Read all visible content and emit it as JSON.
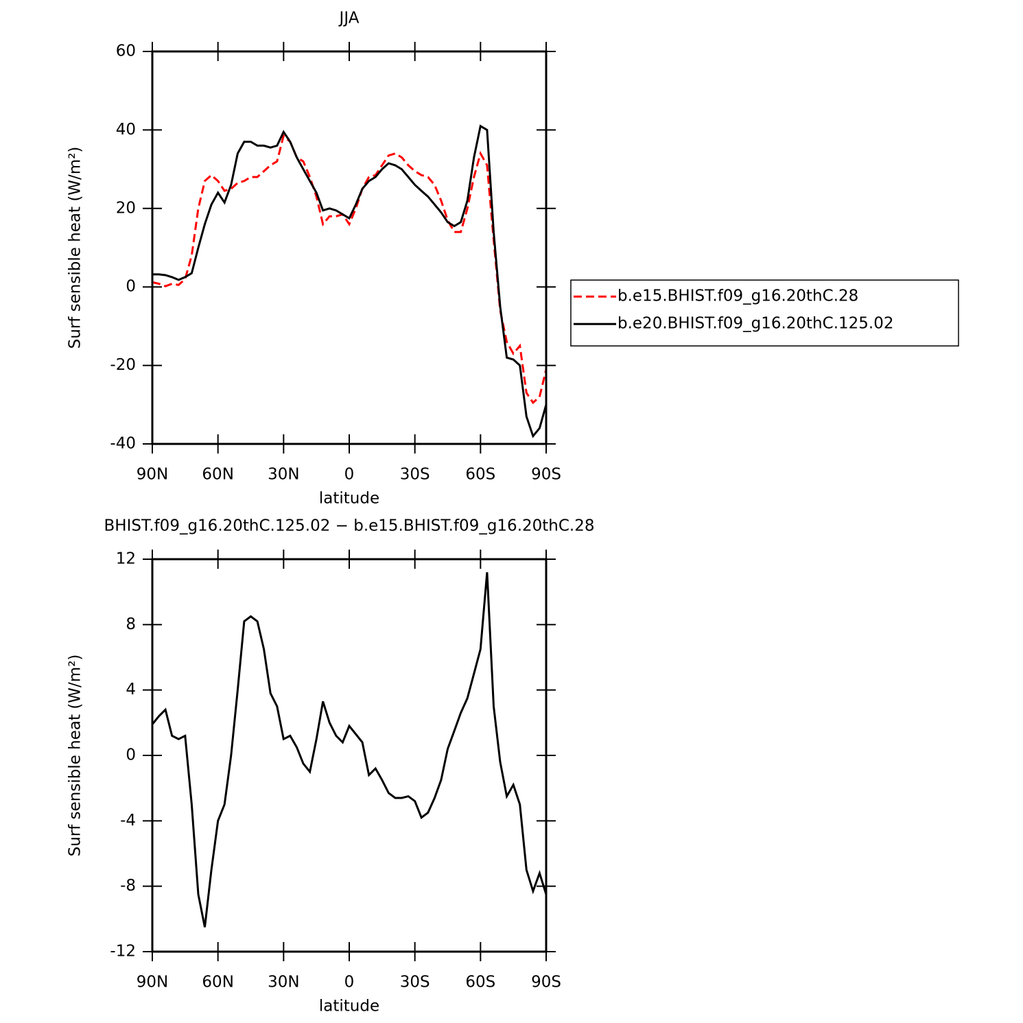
{
  "chart_data": [
    {
      "type": "line",
      "title": "JJA",
      "xlabel": "latitude",
      "ylabel": "Surf sensible heat (W/m²)",
      "x": [
        90,
        87,
        84,
        81,
        78,
        75,
        72,
        69,
        66,
        63,
        60,
        57,
        54,
        51,
        48,
        45,
        42,
        39,
        36,
        33,
        30,
        27,
        24,
        21,
        18,
        15,
        12,
        9,
        6,
        3,
        0,
        -3,
        -6,
        -9,
        -12,
        -15,
        -18,
        -21,
        -24,
        -27,
        -30,
        -33,
        -36,
        -39,
        -42,
        -45,
        -48,
        -51,
        -54,
        -57,
        -60,
        -63,
        -66,
        -69,
        -72,
        -75,
        -78,
        -81,
        -84,
        -87,
        -90
      ],
      "xlim": [
        90,
        -90
      ],
      "xticks": [
        {
          "value": 90,
          "label": "90N"
        },
        {
          "value": 60,
          "label": "60N"
        },
        {
          "value": 30,
          "label": "30N"
        },
        0,
        {
          "value": -30,
          "label": "30S"
        },
        {
          "value": -60,
          "label": "60S"
        },
        {
          "value": -90,
          "label": "90S"
        }
      ],
      "ylim": [
        -40,
        60
      ],
      "yticks": [
        -40,
        -20,
        0,
        20,
        40,
        60
      ],
      "legend": "right",
      "series": [
        {
          "name": "b.e15.BHIST.f09_g16.20thC.28",
          "color": "#ff0000",
          "dash": true,
          "values": [
            1.2,
            0.8,
            0.2,
            0.8,
            0.5,
            2,
            8,
            20,
            27,
            28.5,
            27,
            24.5,
            25,
            26.5,
            27,
            28,
            28,
            29.5,
            31,
            32,
            38.5,
            37,
            33,
            32,
            28,
            23,
            16,
            18,
            18,
            18.5,
            16,
            20,
            25,
            28,
            28.5,
            31,
            33.5,
            34,
            33,
            31,
            29.5,
            28.5,
            28,
            26,
            22,
            17,
            14,
            14,
            20,
            28,
            34,
            31,
            12,
            -6,
            -14,
            -17,
            -15,
            -27,
            -29.5,
            -28,
            -21
          ]
        },
        {
          "name": "b.e20.BHIST.f09_g16.20thC.125.02",
          "color": "#000000",
          "dash": false,
          "values": [
            3.2,
            3.2,
            3,
            2.5,
            1.8,
            2.5,
            3.5,
            10,
            16,
            21,
            24,
            21.5,
            26,
            34,
            37,
            37,
            36,
            36,
            35.5,
            36,
            39.5,
            37,
            33,
            30,
            27,
            24,
            19.5,
            20,
            19.5,
            18.5,
            17.5,
            21,
            25,
            27,
            28,
            30,
            31.5,
            31,
            30,
            28,
            26,
            24.5,
            23,
            21,
            19,
            16.5,
            15.5,
            16.5,
            22,
            33,
            41,
            40,
            14,
            -5,
            -18,
            -18.5,
            -20,
            -33,
            -38,
            -36,
            -30
          ]
        }
      ]
    },
    {
      "type": "line",
      "title": "BHIST.f09_g16.20thC.125.02 − b.e15.BHIST.f09_g16.20thC.28",
      "xlabel": "latitude",
      "ylabel": "Surf sensible heat (W/m²)",
      "x": [
        90,
        87,
        84,
        81,
        78,
        75,
        72,
        69,
        66,
        63,
        60,
        57,
        54,
        51,
        48,
        45,
        42,
        39,
        36,
        33,
        30,
        27,
        24,
        21,
        18,
        15,
        12,
        9,
        6,
        3,
        0,
        -3,
        -6,
        -9,
        -12,
        -15,
        -18,
        -21,
        -24,
        -27,
        -30,
        -33,
        -36,
        -39,
        -42,
        -45,
        -48,
        -51,
        -54,
        -57,
        -60,
        -63,
        -66,
        -69,
        -72,
        -75,
        -78,
        -81,
        -84,
        -87,
        -90
      ],
      "xlim": [
        90,
        -90
      ],
      "xticks": [
        {
          "value": 90,
          "label": "90N"
        },
        {
          "value": 60,
          "label": "60N"
        },
        {
          "value": 30,
          "label": "30N"
        },
        0,
        {
          "value": -30,
          "label": "30S"
        },
        {
          "value": -60,
          "label": "60S"
        },
        {
          "value": -90,
          "label": "90S"
        }
      ],
      "ylim": [
        -12,
        12
      ],
      "yticks": [
        -12,
        -8,
        -4,
        0,
        4,
        8,
        12
      ],
      "series": [
        {
          "color": "#000000",
          "dash": false,
          "values": [
            1.9,
            2.4,
            2.8,
            1.2,
            1.0,
            1.2,
            -3,
            -8.5,
            -10.5,
            -7,
            -4,
            -3,
            0,
            4,
            8.2,
            8.5,
            8.2,
            6.5,
            3.8,
            3,
            1,
            1.2,
            0.5,
            -0.5,
            -1,
            1,
            3.3,
            2,
            1.2,
            0.8,
            1.8,
            1.3,
            0.8,
            -1.2,
            -0.8,
            -1.5,
            -2.3,
            -2.6,
            -2.6,
            -2.5,
            -2.8,
            -3.8,
            -3.5,
            -2.6,
            -1.5,
            0.4,
            1.5,
            2.6,
            3.5,
            5,
            6.5,
            11.2,
            3,
            -0.4,
            -2.5,
            -1.8,
            -3,
            -7,
            -8.3,
            -7.2,
            -8.5
          ]
        }
      ]
    }
  ]
}
